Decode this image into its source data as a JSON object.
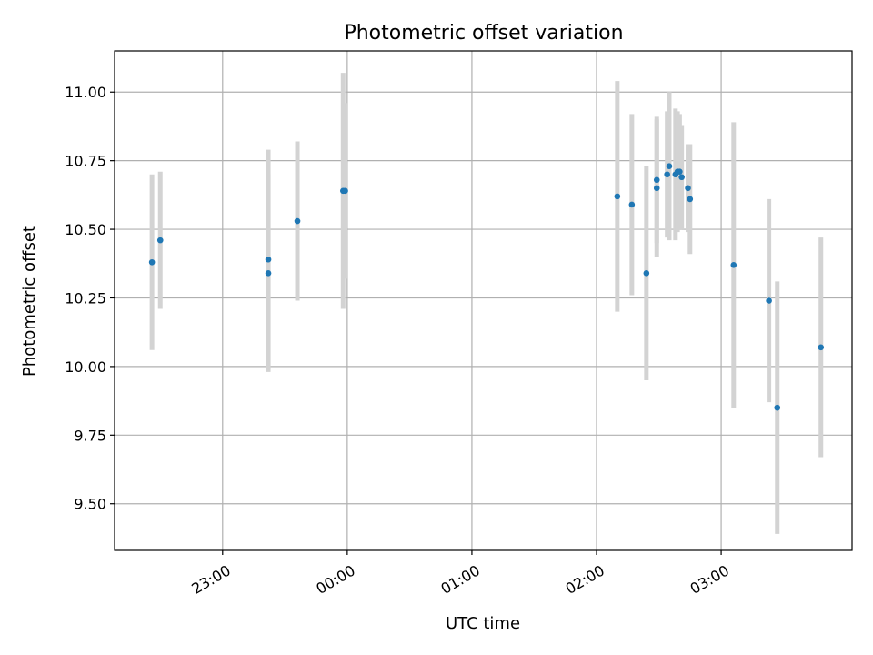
{
  "chart_data": {
    "type": "scatter",
    "title": "Photometric offset variation",
    "xlabel": "UTC time",
    "ylabel": "Photometric offset",
    "x_axis": {
      "type": "time",
      "range": [
        "22:08",
        "04:03"
      ],
      "ticks": [
        "23:00",
        "00:00",
        "01:00",
        "02:00",
        "03:00"
      ]
    },
    "y_axis": {
      "range": [
        9.33,
        11.15
      ],
      "ticks": [
        "9.50",
        "9.75",
        "10.00",
        "10.25",
        "10.50",
        "10.75",
        "11.00"
      ]
    },
    "grid": true,
    "colors": {
      "marker": "#1f77b4",
      "errorbar": "#d3d3d3",
      "grid": "#b0b0b0"
    },
    "points": [
      {
        "x": "22:26",
        "y": 10.38,
        "err": 0.32
      },
      {
        "x": "22:30",
        "y": 10.46,
        "err": 0.25
      },
      {
        "x": "23:22",
        "y": 10.39,
        "err": 0.4
      },
      {
        "x": "23:22",
        "y": 10.34,
        "err": 0.36
      },
      {
        "x": "23:36",
        "y": 10.53,
        "err": 0.29
      },
      {
        "x": "23:58",
        "y": 10.64,
        "err": 0.43
      },
      {
        "x": "23:59",
        "y": 10.64,
        "err": 0.32
      },
      {
        "x": "02:10",
        "y": 10.62,
        "err": 0.42
      },
      {
        "x": "02:17",
        "y": 10.59,
        "err": 0.33
      },
      {
        "x": "02:24",
        "y": 10.34,
        "err": 0.39
      },
      {
        "x": "02:29",
        "y": 10.68,
        "err": 0.23
      },
      {
        "x": "02:29",
        "y": 10.65,
        "err": 0.25
      },
      {
        "x": "02:34",
        "y": 10.7,
        "err": 0.23
      },
      {
        "x": "02:35",
        "y": 10.73,
        "err": 0.27
      },
      {
        "x": "02:38",
        "y": 10.7,
        "err": 0.24
      },
      {
        "x": "02:39",
        "y": 10.71,
        "err": 0.22
      },
      {
        "x": "02:40",
        "y": 10.71,
        "err": 0.21
      },
      {
        "x": "02:41",
        "y": 10.69,
        "err": 0.19
      },
      {
        "x": "02:44",
        "y": 10.65,
        "err": 0.16
      },
      {
        "x": "02:45",
        "y": 10.61,
        "err": 0.2
      },
      {
        "x": "03:06",
        "y": 10.37,
        "err": 0.52
      },
      {
        "x": "03:23",
        "y": 10.24,
        "err": 0.37
      },
      {
        "x": "03:27",
        "y": 9.85,
        "err": 0.46
      },
      {
        "x": "03:48",
        "y": 10.07,
        "err": 0.4
      }
    ]
  }
}
